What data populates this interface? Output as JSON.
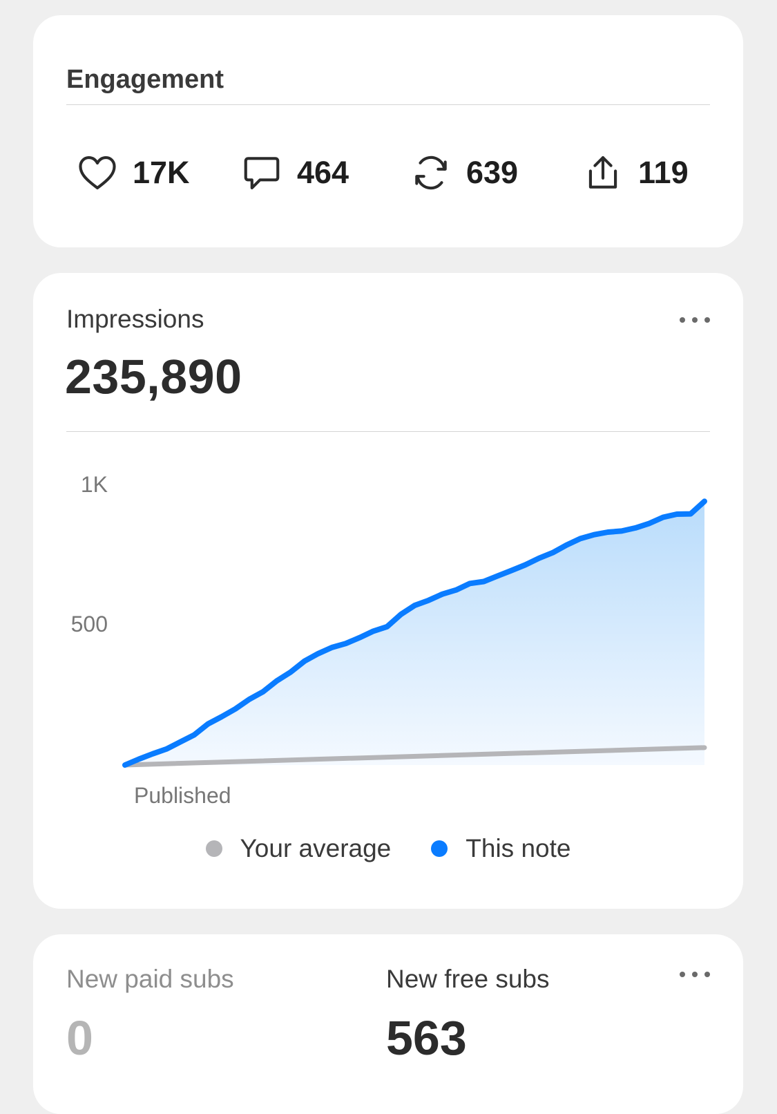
{
  "engagement": {
    "title": "Engagement",
    "stats": [
      {
        "icon": "heart-icon",
        "value": "17K"
      },
      {
        "icon": "comment-icon",
        "value": "464"
      },
      {
        "icon": "repost-icon",
        "value": "639"
      },
      {
        "icon": "share-icon",
        "value": "119"
      }
    ]
  },
  "impressions": {
    "label": "Impressions",
    "value": "235,890",
    "more_icon": "more-horizontal-icon",
    "legend": [
      {
        "label": "Your average",
        "color": "#b5b5b8"
      },
      {
        "label": "This note",
        "color": "#0a7cff"
      }
    ]
  },
  "chart_data": {
    "type": "area",
    "title": "",
    "xlabel": "",
    "ylabel": "",
    "x_tick_labels": [
      "Published"
    ],
    "y_tick_labels": [
      "1K",
      "500"
    ],
    "ylim": [
      0,
      1000
    ],
    "grid": false,
    "legend_position": "bottom",
    "series": [
      {
        "name": "Your average",
        "color": "#b5b5b8",
        "values": [
          0,
          62
        ]
      },
      {
        "name": "This note",
        "color": "#0a7cff",
        "values": [
          0,
          21,
          40,
          57,
          82,
          107,
          146,
          172,
          200,
          234,
          261,
          300,
          331,
          370,
          397,
          419,
          433,
          454,
          477,
          493,
          537,
          569,
          587,
          609,
          624,
          647,
          654,
          674,
          693,
          713,
          737,
          757,
          784,
          807,
          821,
          830,
          834,
          845,
          861,
          883,
          894,
          895,
          940
        ]
      }
    ]
  },
  "subs": {
    "paid_label": "New paid subs",
    "paid_value": "0",
    "free_label": "New free subs",
    "free_value": "563",
    "more_icon": "more-horizontal-icon"
  }
}
